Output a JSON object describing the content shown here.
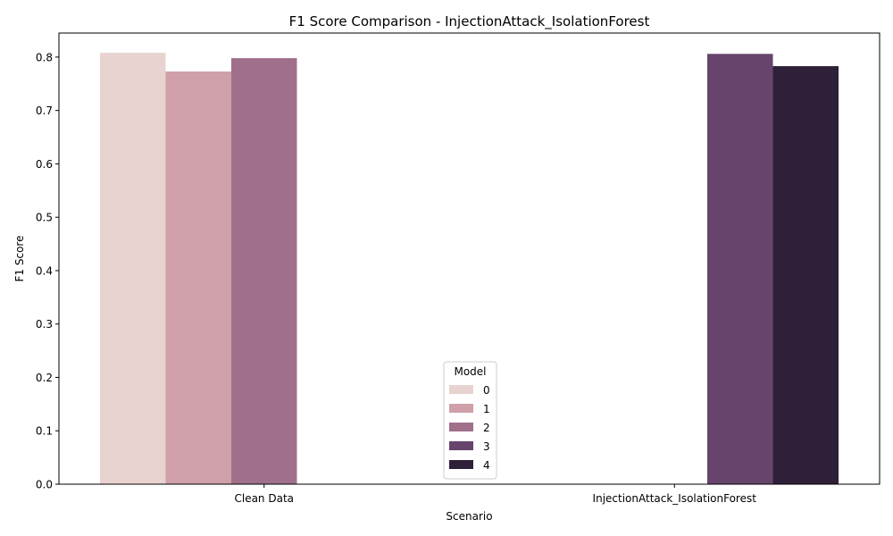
{
  "chart_data": {
    "type": "bar",
    "title": "F1 Score Comparison - InjectionAttack_IsolationForest",
    "xlabel": "Scenario",
    "ylabel": "F1 Score",
    "categories": [
      "Clean Data",
      "InjectionAttack_IsolationForest"
    ],
    "ylim": [
      0,
      0.845
    ],
    "yticks": [
      "0.0",
      "0.1",
      "0.2",
      "0.3",
      "0.4",
      "0.5",
      "0.6",
      "0.7",
      "0.8"
    ],
    "legend": {
      "title": "Model",
      "placement": "lower-center"
    },
    "series": [
      {
        "name": "0",
        "color": "#e8d3d0",
        "values": [
          0.808,
          null
        ]
      },
      {
        "name": "1",
        "color": "#cfa0a9",
        "values": [
          0.773,
          null
        ]
      },
      {
        "name": "2",
        "color": "#a0708b",
        "values": [
          0.798,
          null
        ]
      },
      {
        "name": "3",
        "color": "#66446b",
        "values": [
          null,
          0.806
        ]
      },
      {
        "name": "4",
        "color": "#2d2038",
        "values": [
          null,
          0.783
        ]
      }
    ],
    "grid": false
  }
}
